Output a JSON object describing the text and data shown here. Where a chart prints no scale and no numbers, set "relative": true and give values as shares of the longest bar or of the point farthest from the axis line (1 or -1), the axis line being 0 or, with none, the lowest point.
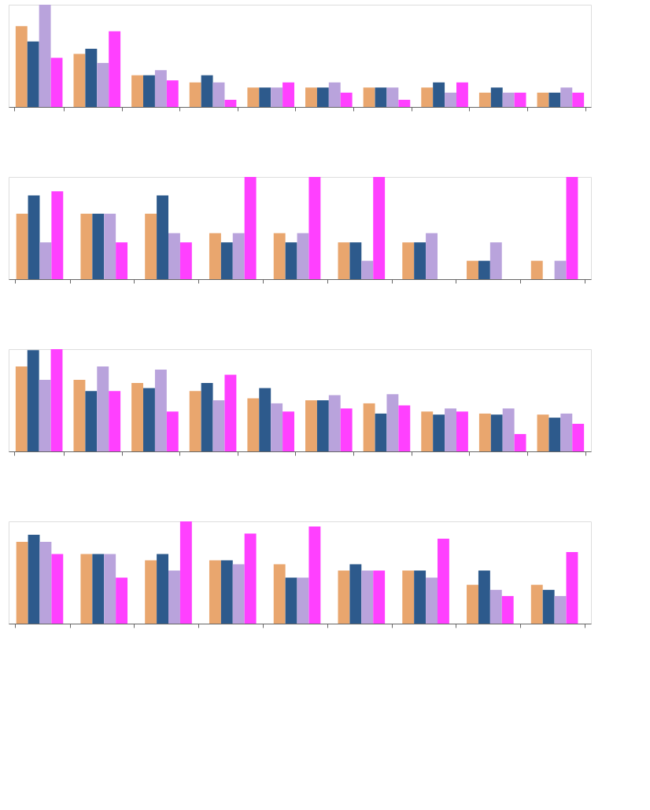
{
  "chart_data": [
    {
      "type": "bar",
      "relative": true,
      "categories": [
        null,
        null,
        null,
        null,
        null,
        null,
        null,
        null,
        null,
        null
      ],
      "series": [
        {
          "color": "#e9a66e",
          "values": [
            0.79,
            0.52,
            0.31,
            0.24,
            0.19,
            0.19,
            0.19,
            0.19,
            0.14,
            0.14
          ]
        },
        {
          "color": "#2d5a8c",
          "values": [
            0.64,
            0.57,
            0.31,
            0.31,
            0.19,
            0.19,
            0.19,
            0.24,
            0.19,
            0.14
          ]
        },
        {
          "color": "#b9a3dc",
          "values": [
            1,
            0.43,
            0.36,
            0.24,
            0.19,
            0.24,
            0.19,
            0.14,
            0.14,
            0.19
          ]
        },
        {
          "color": "#ff40ff",
          "values": [
            0.48,
            0.74,
            0.26,
            0.07,
            0.24,
            0.14,
            0.07,
            0.24,
            0.14,
            0.14
          ]
        }
      ]
    },
    {
      "type": "bar",
      "relative": true,
      "categories": [
        null,
        null,
        null,
        null,
        null,
        null,
        null,
        null,
        null
      ],
      "series": [
        {
          "color": "#e9a66e",
          "values": [
            0.64,
            0.64,
            0.64,
            0.45,
            0.45,
            0.36,
            0.36,
            0.18,
            0.18
          ]
        },
        {
          "color": "#2d5a8c",
          "values": [
            0.82,
            0.64,
            0.82,
            0.36,
            0.36,
            0.36,
            0.36,
            0.18,
            0
          ]
        },
        {
          "color": "#b9a3dc",
          "values": [
            0.36,
            0.64,
            0.45,
            0.45,
            0.45,
            0.18,
            0.45,
            0.36,
            0.18
          ]
        },
        {
          "color": "#ff40ff",
          "values": [
            0.86,
            0.36,
            0.36,
            1,
            1,
            1,
            0,
            0,
            1
          ]
        }
      ]
    },
    {
      "type": "bar",
      "relative": true,
      "categories": [
        null,
        null,
        null,
        null,
        null,
        null,
        null,
        null,
        null,
        null
      ],
      "series": [
        {
          "color": "#e9a66e",
          "values": [
            0.83,
            0.7,
            0.67,
            0.59,
            0.52,
            0.5,
            0.47,
            0.39,
            0.37,
            0.36
          ]
        },
        {
          "color": "#2d5a8c",
          "values": [
            0.99,
            0.59,
            0.62,
            0.67,
            0.62,
            0.5,
            0.37,
            0.36,
            0.36,
            0.33
          ]
        },
        {
          "color": "#b9a3dc",
          "values": [
            0.7,
            0.83,
            0.8,
            0.5,
            0.47,
            0.55,
            0.56,
            0.42,
            0.42,
            0.37
          ]
        },
        {
          "color": "#ff40ff",
          "values": [
            1,
            0.59,
            0.39,
            0.75,
            0.39,
            0.42,
            0.45,
            0.39,
            0.17,
            0.27
          ]
        }
      ]
    },
    {
      "type": "bar",
      "relative": true,
      "categories": [
        null,
        null,
        null,
        null,
        null,
        null,
        null,
        null,
        null
      ],
      "series": [
        {
          "color": "#e9a66e",
          "values": [
            0.8,
            0.68,
            0.62,
            0.62,
            0.58,
            0.52,
            0.52,
            0.38,
            0.38
          ]
        },
        {
          "color": "#2d5a8c",
          "values": [
            0.87,
            0.68,
            0.68,
            0.62,
            0.45,
            0.58,
            0.52,
            0.52,
            0.33
          ]
        },
        {
          "color": "#b9a3dc",
          "values": [
            0.8,
            0.68,
            0.52,
            0.58,
            0.45,
            0.52,
            0.45,
            0.33,
            0.27
          ]
        },
        {
          "color": "#ff40ff",
          "values": [
            0.68,
            0.45,
            1,
            0.88,
            0.95,
            0.52,
            0.83,
            0.27,
            0.7
          ]
        }
      ]
    }
  ]
}
